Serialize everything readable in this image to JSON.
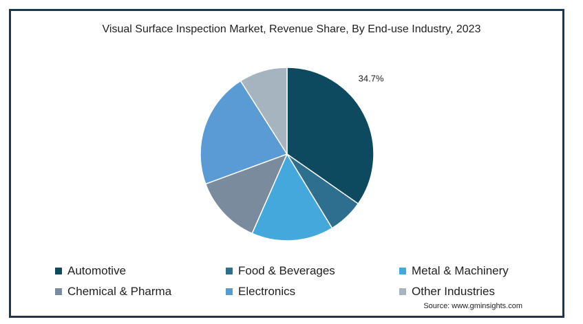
{
  "chart_data": {
    "type": "pie",
    "title": "Visual Surface Inspection Market, Revenue Share, By End-use Industry, 2023",
    "categories": [
      "Automotive",
      "Food & Beverages",
      "Metal & Machinery",
      "Chemical & Pharma",
      "Electronics",
      "Other Industries"
    ],
    "values": [
      34.7,
      6.6,
      15.3,
      12.8,
      21.6,
      9.0
    ],
    "colors": [
      "#0d4a60",
      "#2e6e8e",
      "#44a8dd",
      "#7a8b9e",
      "#5b9bd5",
      "#a5b4bf"
    ],
    "data_labels": [
      "34.7%",
      "",
      "",
      "",
      "",
      ""
    ],
    "start_angle_deg": 0,
    "direction": "clockwise",
    "legend_position": "bottom",
    "source": "Source: www.gminsights.com"
  }
}
